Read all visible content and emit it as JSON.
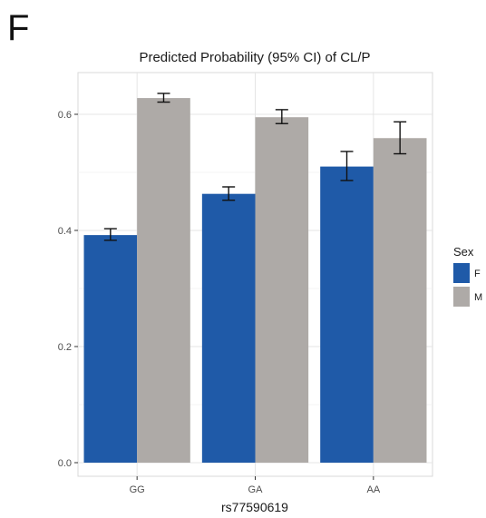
{
  "panel_label": "F",
  "chart_data": {
    "type": "bar",
    "title": "Predicted Probability (95% CI) of CL/P",
    "xlabel": "rs77590619",
    "ylabel": "",
    "categories": [
      "GG",
      "GA",
      "AA"
    ],
    "ylim": [
      0,
      0.66
    ],
    "yticks": [
      0.0,
      0.2,
      0.4,
      0.6
    ],
    "ytick_labels": [
      "0.0",
      "0.2",
      "0.4",
      "0.6"
    ],
    "grid": true,
    "legend": {
      "title": "Sex",
      "position": "right"
    },
    "series": [
      {
        "name": "F",
        "color": "#1f5aa8",
        "values": [
          0.392,
          0.463,
          0.51
        ],
        "ci_low": [
          0.383,
          0.452,
          0.486
        ],
        "ci_high": [
          0.403,
          0.475,
          0.536
        ]
      },
      {
        "name": "M",
        "color": "#aeaaa7",
        "values": [
          0.628,
          0.595,
          0.559
        ],
        "ci_low": [
          0.621,
          0.584,
          0.532
        ],
        "ci_high": [
          0.636,
          0.608,
          0.587
        ]
      }
    ]
  }
}
